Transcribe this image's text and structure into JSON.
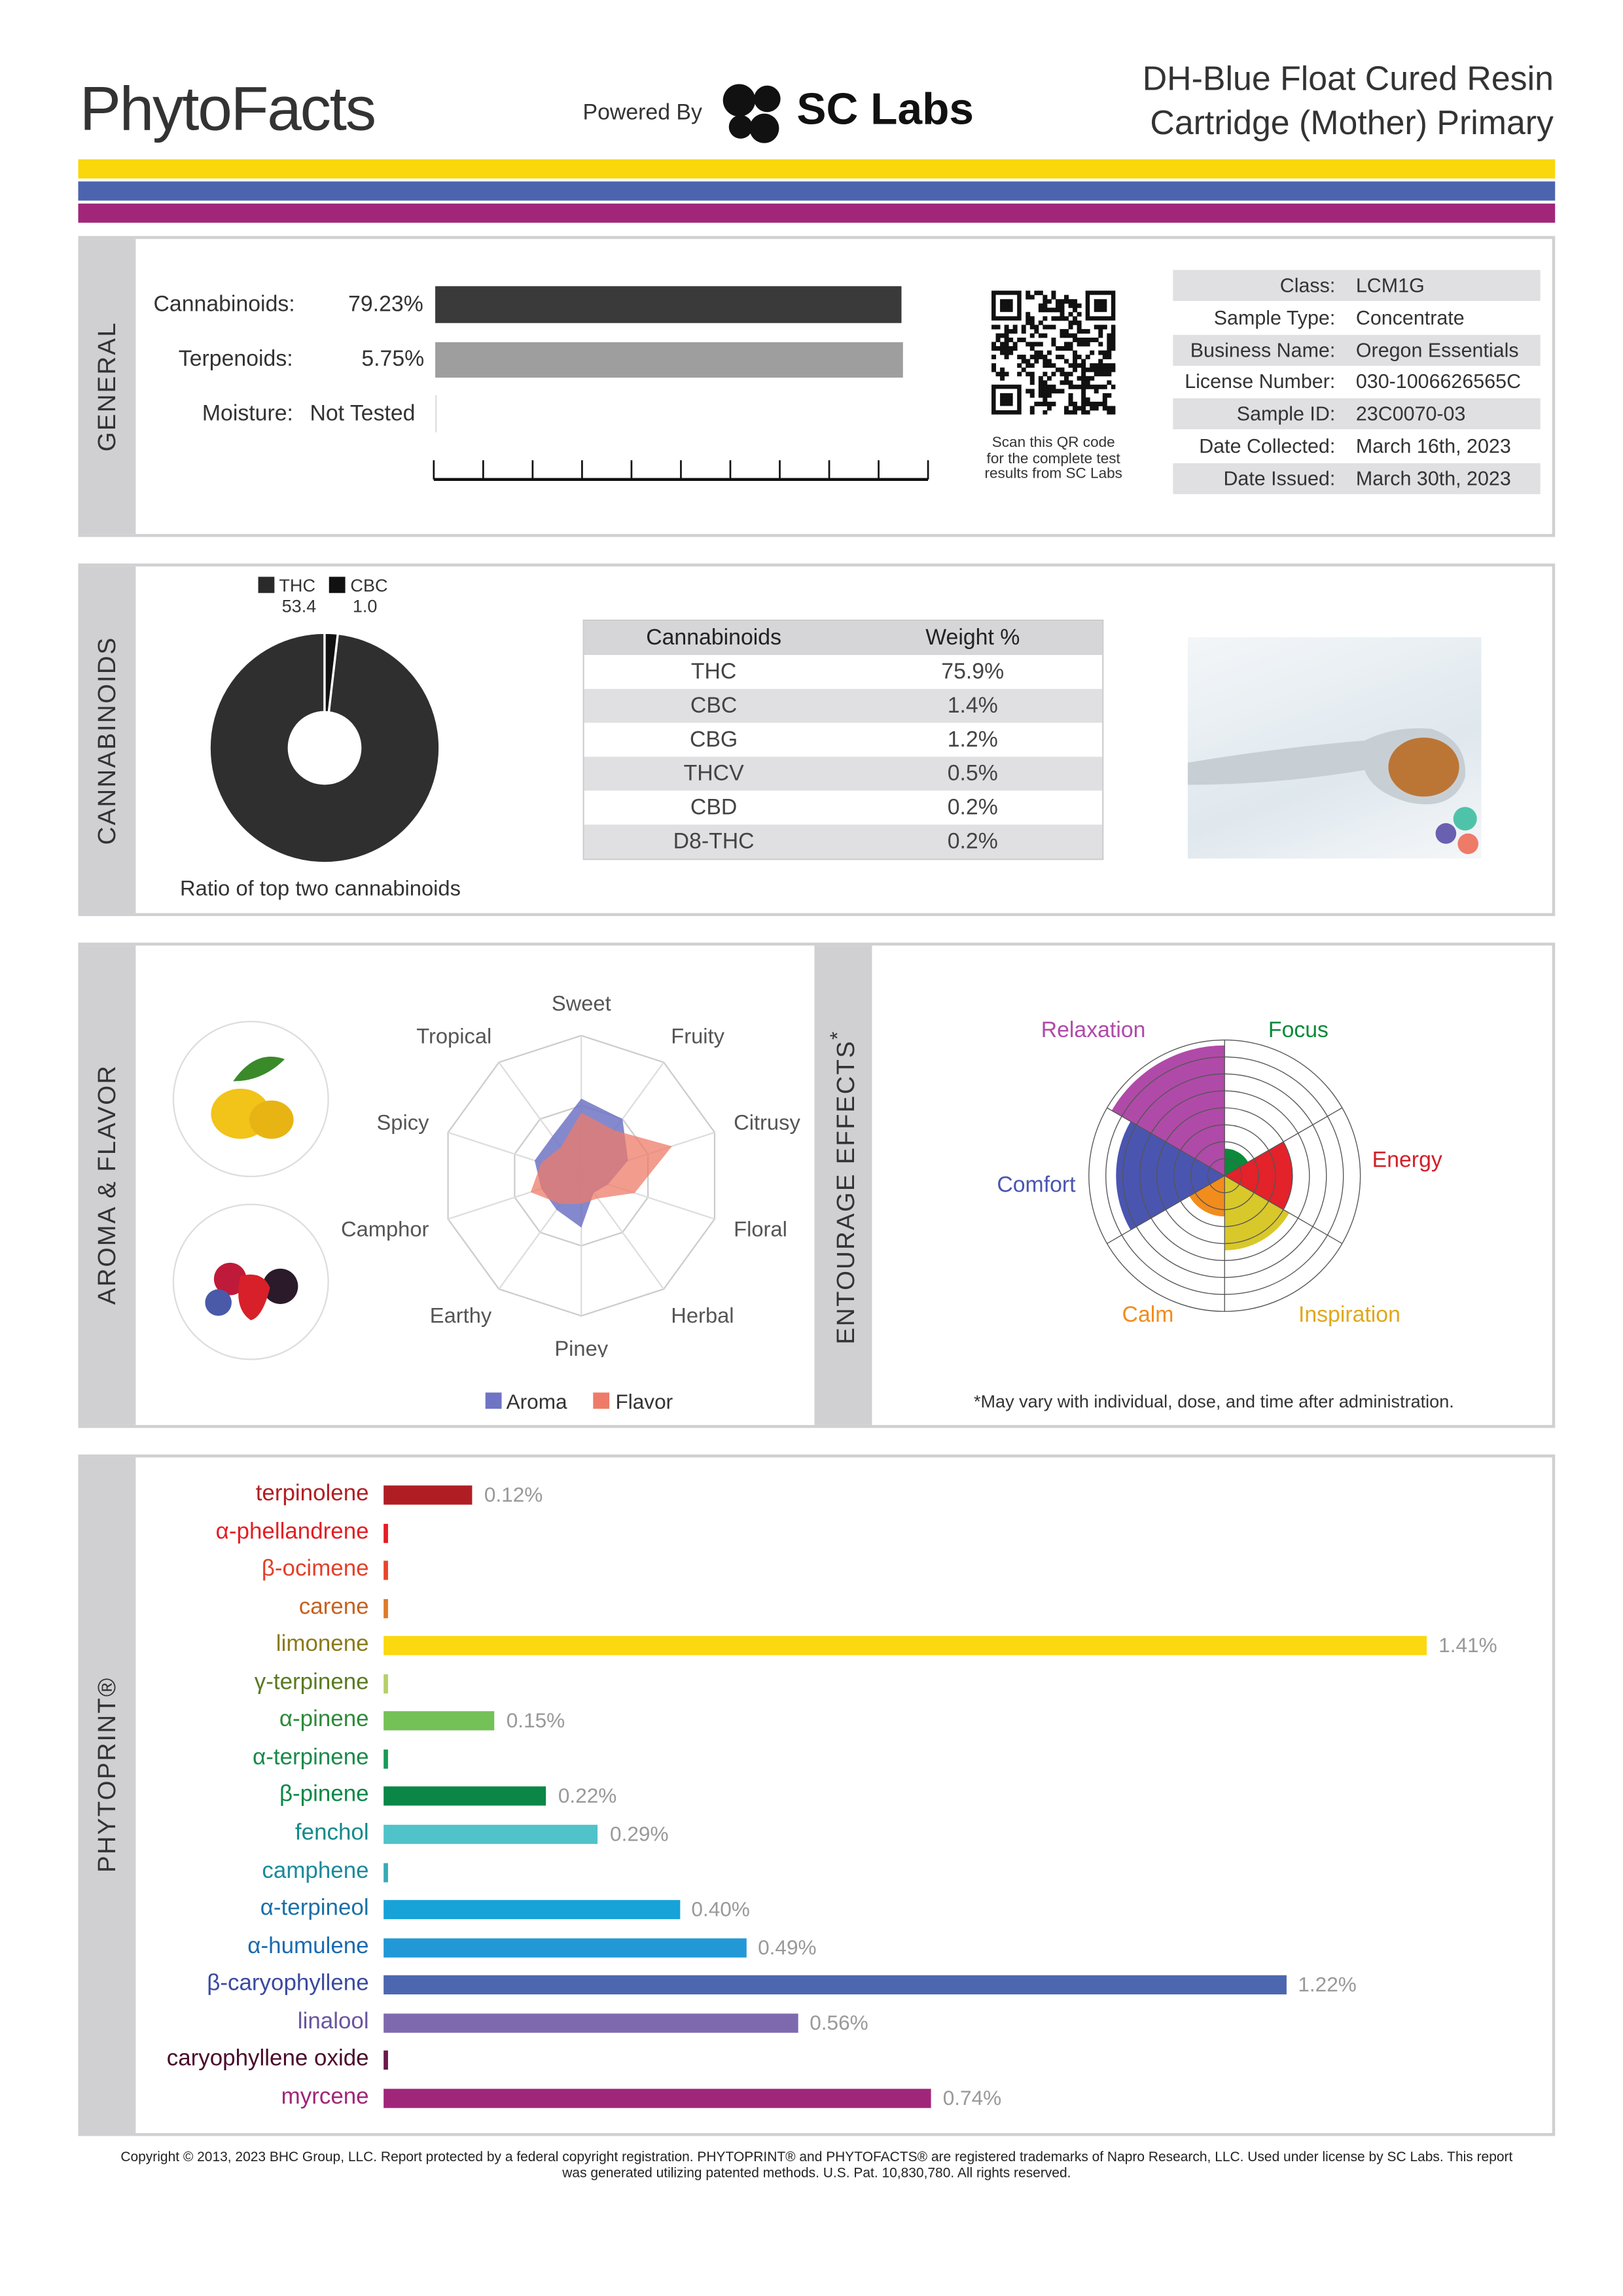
{
  "header": {
    "logo": "PhytoFacts",
    "powered_by": "Powered By",
    "lab_logo": "SC Labs",
    "title_line1": "DH-Blue Float Cured Resin",
    "title_line2": "Cartridge (Mother) Primary"
  },
  "colors": {
    "band1": "#f9d70b",
    "band2": "#4c63ae",
    "band3": "#a1267a"
  },
  "general": {
    "section": "GENERAL",
    "cannabinoids_label": "Cannabinoids:",
    "cannabinoids_value": "79.23%",
    "cannabinoids_pct": 79.23,
    "terpenoids_label": "Terpenoids:",
    "terpenoids_value": "5.75%",
    "terpenoids_pct": 5.75,
    "moisture_label": "Moisture:",
    "moisture_value": "Not Tested",
    "qr_caption": [
      "Scan this QR code",
      "for the complete test",
      "results from SC Labs"
    ],
    "info": [
      {
        "label": "Class:",
        "value": "LCM1G"
      },
      {
        "label": "Sample Type:",
        "value": "Concentrate"
      },
      {
        "label": "Business Name:",
        "value": "Oregon Essentials"
      },
      {
        "label": "License Number:",
        "value": "030-1006626565C"
      },
      {
        "label": "Sample ID:",
        "value": "23C0070-03"
      },
      {
        "label": "Date Collected:",
        "value": "March 16th, 2023"
      },
      {
        "label": "Date Issued:",
        "value": "March 30th, 2023"
      }
    ]
  },
  "cannabinoids": {
    "section": "CANNABINOIDS",
    "pie": {
      "legend": [
        {
          "name": "THC",
          "value": "53.4"
        },
        {
          "name": "CBC",
          "value": "1.0"
        }
      ],
      "values": [
        53.4,
        1.0
      ],
      "caption": "Ratio of top two cannabinoids"
    },
    "table": {
      "headers": [
        "Cannabinoids",
        "Weight %"
      ],
      "rows": [
        [
          "THC",
          "75.9%"
        ],
        [
          "CBC",
          "1.4%"
        ],
        [
          "CBG",
          "1.2%"
        ],
        [
          "THCV",
          "0.5%"
        ],
        [
          "CBD",
          "0.2%"
        ],
        [
          "D8-THC",
          "0.2%"
        ]
      ]
    }
  },
  "aroma": {
    "section": "AROMA & FLAVOR",
    "axes": [
      "Sweet",
      "Fruity",
      "Citrusy",
      "Floral",
      "Herbal",
      "Piney",
      "Earthy",
      "Camphor",
      "Spicy",
      "Tropical"
    ],
    "aroma_values": [
      0.55,
      0.5,
      0.35,
      0.2,
      0.15,
      0.37,
      0.3,
      0.3,
      0.35,
      0.35
    ],
    "flavor_values": [
      0.45,
      0.4,
      0.68,
      0.4,
      0.2,
      0.2,
      0.25,
      0.38,
      0.3,
      0.25
    ],
    "legend": [
      {
        "name": "Aroma",
        "color": "#6f74c4"
      },
      {
        "name": "Flavor",
        "color": "#ee7b68"
      }
    ]
  },
  "entourage": {
    "section": "ENTOURAGE EFFECTS",
    "asterisk": "*",
    "effects": [
      {
        "name": "Focus",
        "value": 0.2,
        "color": "#0a8a3a"
      },
      {
        "name": "Energy",
        "value": 0.5,
        "color": "#e3222a"
      },
      {
        "name": "Inspiration",
        "value": 0.55,
        "color": "#d8c82a"
      },
      {
        "name": "Calm",
        "value": 0.3,
        "color": "#f28c1c"
      },
      {
        "name": "Comfort",
        "value": 0.8,
        "color": "#4a55b0"
      },
      {
        "name": "Relaxation",
        "value": 0.96,
        "color": "#b04aa8"
      }
    ],
    "label_colors": {
      "Focus": "#0a8a3a",
      "Energy": "#d2202a",
      "Inspiration": "#e0a81a",
      "Calm": "#f28c1c",
      "Comfort": "#4a55b0",
      "Relaxation": "#b04aa8"
    },
    "note": "*May vary with individual, dose, and time after administration."
  },
  "phytoprint": {
    "section": "PHYTOPRINT®",
    "terpenes": [
      {
        "name": "terpinolene",
        "value": 0.12,
        "label": "0.12%",
        "color": "#b01e23",
        "text": "#b01e23"
      },
      {
        "name": "α-phellandrene",
        "value": 0.005,
        "label": "",
        "color": "#e31e24",
        "text": "#e31e24"
      },
      {
        "name": "β-ocimene",
        "value": 0.005,
        "label": "",
        "color": "#e8452b",
        "text": "#e3402a"
      },
      {
        "name": "carene",
        "value": 0.005,
        "label": "",
        "color": "#e07a2a",
        "text": "#c5621f"
      },
      {
        "name": "limonene",
        "value": 1.41,
        "label": "1.41%",
        "color": "#fbd80f",
        "text": "#8a7a1a"
      },
      {
        "name": "γ-terpinene",
        "value": 0.005,
        "label": "",
        "color": "#b5cf6b",
        "text": "#5a7a20"
      },
      {
        "name": "α-pinene",
        "value": 0.15,
        "label": "0.15%",
        "color": "#74c158",
        "text": "#2c8a3a"
      },
      {
        "name": "α-terpinene",
        "value": 0.005,
        "label": "",
        "color": "#1a9a5a",
        "text": "#1a8a4a"
      },
      {
        "name": "β-pinene",
        "value": 0.22,
        "label": "0.22%",
        "color": "#0a8746",
        "text": "#0a8746"
      },
      {
        "name": "fenchol",
        "value": 0.29,
        "label": "0.29%",
        "color": "#4fc3c9",
        "text": "#138a8a"
      },
      {
        "name": "camphene",
        "value": 0.005,
        "label": "",
        "color": "#3aaab8",
        "text": "#1a8a9a"
      },
      {
        "name": "α-terpineol",
        "value": 0.4,
        "label": "0.40%",
        "color": "#17a2d8",
        "text": "#1a70a8"
      },
      {
        "name": "α-humulene",
        "value": 0.49,
        "label": "0.49%",
        "color": "#2299d6",
        "text": "#1a6ab0"
      },
      {
        "name": "β-caryophyllene",
        "value": 1.22,
        "label": "1.22%",
        "color": "#4c67b0",
        "text": "#3a4aa0"
      },
      {
        "name": "linalool",
        "value": 0.56,
        "label": "0.56%",
        "color": "#7f69ae",
        "text": "#6a54a0"
      },
      {
        "name": "caryophyllene oxide",
        "value": 0.005,
        "label": "",
        "color": "#6a1a4a",
        "text": "#4a0a2a"
      },
      {
        "name": "myrcene",
        "value": 0.74,
        "label": "0.74%",
        "color": "#a0267a",
        "text": "#a0267a"
      }
    ]
  },
  "footer": {
    "line1": "Copyright © 2013, 2023 BHC Group, LLC. Report protected by a federal copyright registration. PHYTOPRINT® and PHYTOFACTS® are registered trademarks of Napro Research, LLC. Used under license by SC Labs. This report",
    "line2": "was generated utilizing patented methods. U.S. Pat. 10,830,780. All rights reserved."
  }
}
